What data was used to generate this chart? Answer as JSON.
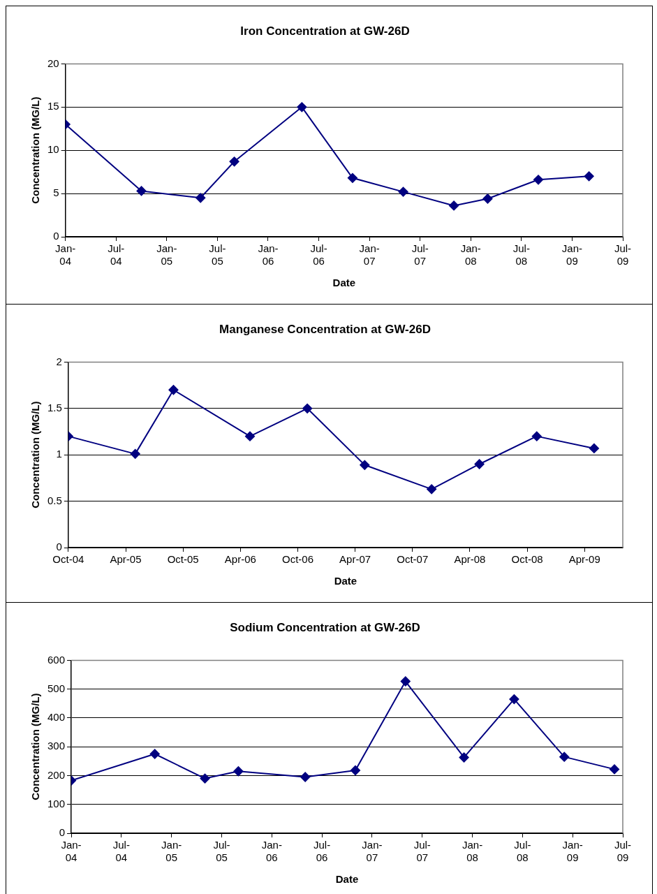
{
  "chart_data": [
    {
      "type": "line",
      "title": "Iron Concentration at GW-26D",
      "xlabel": "Date",
      "ylabel": "Concentration (MG/L)",
      "x": [
        "2004-01",
        "2004-10",
        "2005-05",
        "2005-09",
        "2006-05",
        "2006-11",
        "2007-05",
        "2007-11",
        "2008-03",
        "2008-09",
        "2009-03"
      ],
      "series": [
        {
          "color": "#000080",
          "values": [
            13,
            5.3,
            4.5,
            8.7,
            15,
            6.8,
            5.2,
            3.6,
            4.4,
            6.6,
            7.0
          ]
        }
      ],
      "xlim": [
        "2004-01",
        "2009-07"
      ],
      "xticks": [
        {
          "value": "2004-01",
          "label": "Jan-04"
        },
        {
          "value": "2004-07",
          "label": "Jul-04"
        },
        {
          "value": "2005-01",
          "label": "Jan-05"
        },
        {
          "value": "2005-07",
          "label": "Jul-05"
        },
        {
          "value": "2006-01",
          "label": "Jan-06"
        },
        {
          "value": "2006-07",
          "label": "Jul-06"
        },
        {
          "value": "2007-01",
          "label": "Jan-07"
        },
        {
          "value": "2007-07",
          "label": "Jul-07"
        },
        {
          "value": "2008-01",
          "label": "Jan-08"
        },
        {
          "value": "2008-07",
          "label": "Jul-08"
        },
        {
          "value": "2009-01",
          "label": "Jan-09"
        },
        {
          "value": "2009-07",
          "label": "Jul-09"
        }
      ],
      "ylim": [
        0,
        20
      ],
      "yticks": [
        0,
        5,
        10,
        15,
        20
      ],
      "grid": "y",
      "legend": false,
      "marker": "diamond",
      "line_style": "solid"
    },
    {
      "type": "line",
      "title": "Manganese Concentration at GW-26D",
      "xlabel": "Date",
      "ylabel": "Concentration (MG/L)",
      "x": [
        "2004-10",
        "2005-05",
        "2005-09",
        "2006-05",
        "2006-11",
        "2007-05",
        "2007-12",
        "2008-05",
        "2008-11",
        "2009-05"
      ],
      "series": [
        {
          "color": "#000080",
          "values": [
            1.2,
            1.01,
            1.7,
            1.2,
            1.5,
            0.89,
            0.63,
            0.9,
            1.2,
            1.07
          ]
        }
      ],
      "xlim": [
        "2004-10",
        "2009-08"
      ],
      "xticks": [
        {
          "value": "2004-10",
          "label": "Oct-04"
        },
        {
          "value": "2005-04",
          "label": "Apr-05"
        },
        {
          "value": "2005-10",
          "label": "Oct-05"
        },
        {
          "value": "2006-04",
          "label": "Apr-06"
        },
        {
          "value": "2006-10",
          "label": "Oct-06"
        },
        {
          "value": "2007-04",
          "label": "Apr-07"
        },
        {
          "value": "2007-10",
          "label": "Oct-07"
        },
        {
          "value": "2008-04",
          "label": "Apr-08"
        },
        {
          "value": "2008-10",
          "label": "Oct-08"
        },
        {
          "value": "2009-04",
          "label": "Apr-09"
        }
      ],
      "ylim": [
        0,
        2
      ],
      "yticks": [
        0,
        0.5,
        1,
        1.5,
        2
      ],
      "grid": "y",
      "legend": false,
      "marker": "diamond",
      "line_style": "solid"
    },
    {
      "type": "line",
      "title": "Sodium Concentration at GW-26D",
      "xlabel": "Date",
      "ylabel": "Concentration (MG/L)",
      "x": [
        "2004-01",
        "2004-11",
        "2005-05",
        "2005-09",
        "2006-05",
        "2006-11",
        "2007-05",
        "2007-12",
        "2008-06",
        "2008-12",
        "2009-06"
      ],
      "series": [
        {
          "color": "#000080",
          "values": [
            183,
            275,
            190,
            215,
            195,
            218,
            527,
            263,
            465,
            265,
            222
          ]
        }
      ],
      "xlim": [
        "2004-01",
        "2009-07"
      ],
      "xticks": [
        {
          "value": "2004-01",
          "label": "Jan-04"
        },
        {
          "value": "2004-07",
          "label": "Jul-04"
        },
        {
          "value": "2005-01",
          "label": "Jan-05"
        },
        {
          "value": "2005-07",
          "label": "Jul-05"
        },
        {
          "value": "2006-01",
          "label": "Jan-06"
        },
        {
          "value": "2006-07",
          "label": "Jul-06"
        },
        {
          "value": "2007-01",
          "label": "Jan-07"
        },
        {
          "value": "2007-07",
          "label": "Jul-07"
        },
        {
          "value": "2008-01",
          "label": "Jan-08"
        },
        {
          "value": "2008-07",
          "label": "Jul-08"
        },
        {
          "value": "2009-01",
          "label": "Jan-09"
        },
        {
          "value": "2009-07",
          "label": "Jul-09"
        }
      ],
      "ylim": [
        0,
        600
      ],
      "yticks": [
        0,
        100,
        200,
        300,
        400,
        500,
        600
      ],
      "grid": "y",
      "legend": false,
      "marker": "diamond",
      "line_style": "solid"
    }
  ]
}
